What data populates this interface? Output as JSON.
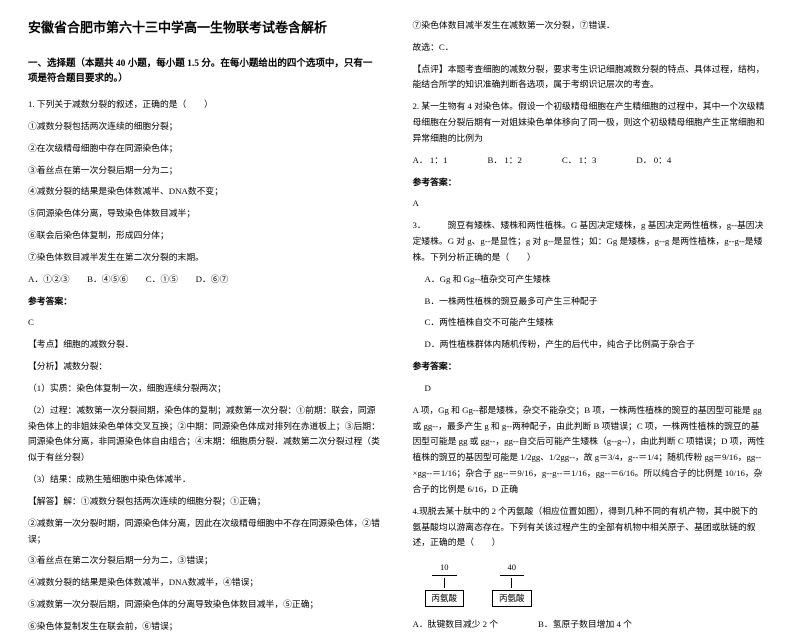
{
  "title": "安徽省合肥市第六十三中学高一生物联考试卷含解析",
  "left": {
    "section1": "一、选择题（本题共 40 小题，每小题 1.5 分。在每小题给出的四个选项中，只有一项是符合题目要求的。）",
    "q1_stem": "1. 下列关于减数分裂的叙述，正确的是（　　）",
    "q1_o1": "①减数分裂包括两次连续的细胞分裂；",
    "q1_o2": "②在次级精母细胞中存在同源染色体；",
    "q1_o3": "③着丝点在第一次分裂后期一分为二；",
    "q1_o4": "④减数分裂的结果是染色体数减半、DNA数不变；",
    "q1_o5": "⑤同源染色体分离，导致染色体数目减半；",
    "q1_o6": "⑥联会后染色体复制，形成四分体；",
    "q1_o7": "⑦染色体数目减半发生在第二次分裂的末期。",
    "q1_choices": "A．①②③　　B．④⑤⑥　　C．①⑤　　D．⑥⑦",
    "ans_label": "参考答案：",
    "q1_ans": "C",
    "kd_label": "【考点】细胞的减数分裂．",
    "fx_label": "【分析】减数分裂：",
    "fx1": "（1）实质：染色体复制一次，细胞连续分裂两次；",
    "fx2": "（2）过程：减数第一次分裂间期，染色体的复制；减数第一次分裂：①前期：联会，同源染色体上的非姐妹染色单体交叉互换；②中期：同源染色体成对排列在赤道板上；③后期：同源染色体分离，非同源染色体自由组合；④末期：细胞质分裂．减数第二次分裂过程（类似于有丝分裂）",
    "fx3": "（3）结果：成熟生殖细胞中染色体减半．",
    "jd_label": "【解答】解：①减数分裂包括两次连续的细胞分裂；①正确；",
    "jd2": "②减数第一次分裂时期，同源染色体分离，因此在次级精母细胞中不存在同源染色体，②错误；",
    "jd3": "③着丝点在第二次分裂后期一分为二，③错误；",
    "jd4": "④减数分裂的结果是染色体数减半，DNA数减半，④错误；",
    "jd5": "⑤减数第一次分裂后期，同源染色体的分离导致染色体数目减半，⑤正确；",
    "jd6": "⑥染色体复制发生在联会前，⑥错误；"
  },
  "right": {
    "r1": "⑦染色体数目减半发生在减数第一次分裂，⑦错误．",
    "r2": "故选：C．",
    "r3": "【点评】本题考查细胞的减数分裂，要求考生识记细胞减数分裂的特点、具体过程，结构，能结合所学的知识准确判断各选项，属于考纲识记层次的考查。",
    "q2_stem": "2. 某一生物有 4 对染色体。假设一个初级精母细胞在产生精细胞的过程中，其中一个次级精母细胞在分裂后期有一对姐妹染色单体移向了同一极，则这个初级精母细胞产生正常细胞和异常细胞的比例为",
    "q2_a": "A． 1：1",
    "q2_b": "B． 1：2",
    "q2_c": "C． 1：3",
    "q2_d": "D． 0：4",
    "q2_ans": "A",
    "q3_stem": "3．　　　豌豆有矮株、矮株和两性植株。G 基因决定矮株，g 基因决定两性植株，g--基因决定矮株。G 对 g、g--是显性；g 对 g--是显性；如：Gg 是矮株，g--g 是两性植株，g--g--是矮株。下列分析正确的是（　　）",
    "q3_a": "A．Gg 和 Gg--植杂交可产生矮株",
    "q3_b": "B．一株两性植株的豌豆最多可产生三种配子",
    "q3_c": "C．两性植株自交不可能产生矮株",
    "q3_d": "D．两性植株群体内随机传粉，产生的后代中，纯合子比例高于杂合子",
    "q3_ans": "D",
    "q3_exp": "A 项，Gg 和 Gg--都是矮株，杂交不能杂交；B 项，一株两性植株的豌豆的基因型可能是 gg 或 gg--，最多产生 g 和 g--两种配子，由此判断 B 项错误；C 项，一株两性植株的豌豆的基因型可能是 gg 或 gg--，gg--自交后可能产生矮株（g--g--），由此判断 C 项错误；D 项，两性植株的豌豆的基因型可能是 1/2gg、1/2gg--，故 g＝3/4，g--＝1/4；随机传粉 gg＝9/16，gg--×gg--＝1/16；杂合子 gg--＝9/16，g--g--＝1/16，gg--＝6/16。所以纯合子的比例是 10/16，杂合子的比例是 6/16，D 正确",
    "q4_stem": "4.现脱去某十肽中的 2 个丙氨酸（相应位置如图），得到几种不同的有机产物，其中脱下的氨基酸均以游离态存在。下列有关该过程产生的全部有机物中相关原子、基团或肽链的叙述，正确的是（　　）",
    "aa1_num": "10",
    "aa1_label": "丙氨酸",
    "aa2_num": "40",
    "aa2_label": "丙氨酸",
    "q4_a": "A．肽键数目减少 2 个",
    "q4_b": "B．氢原子数目增加 4 个"
  }
}
